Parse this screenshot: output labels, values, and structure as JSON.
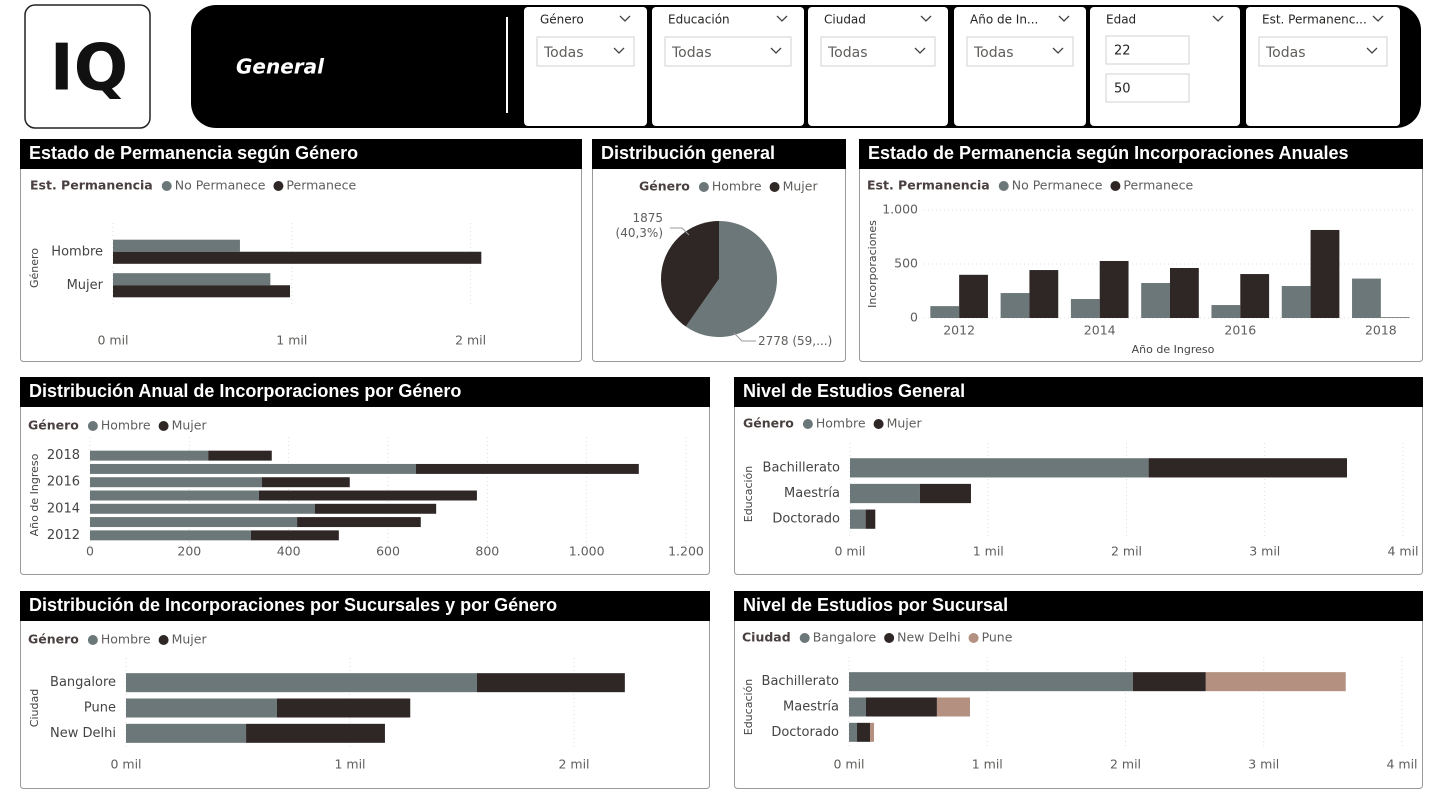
{
  "header": {
    "logo": "IQ",
    "title": "General",
    "filters": [
      {
        "label": "Género",
        "value": "Todas"
      },
      {
        "label": "Educación",
        "value": "Todas"
      },
      {
        "label": "Ciudad",
        "value": "Todas"
      },
      {
        "label": "Año de In...",
        "value": "Todas"
      },
      {
        "label": "Edad",
        "min": 22,
        "max": 50
      },
      {
        "label": "Est. Permanenc...",
        "value": "Todas"
      }
    ]
  },
  "chart_data": [
    {
      "type": "bar",
      "orientation": "horizontal",
      "stacked": false,
      "grid": true,
      "title": "Estado de Permanencia según Género",
      "legend_title": "Est. Permanencia",
      "y_label": "Género",
      "categories": [
        "Hombre",
        "Mujer"
      ],
      "series": [
        {
          "name": "No Permanece",
          "color": "#6b7778",
          "values": [
            710,
            880
          ]
        },
        {
          "name": "Permanece",
          "color": "#2f2626",
          "values": [
            2060,
            990
          ]
        }
      ],
      "xlim": [
        0,
        2500
      ],
      "xticks": [
        {
          "value": 0,
          "label": "0 mil"
        },
        {
          "value": 1000,
          "label": "1 mil"
        },
        {
          "value": 2000,
          "label": "2 mil"
        }
      ]
    },
    {
      "type": "pie",
      "title": "Distribución general",
      "legend_title": "Género",
      "categories": [
        "Hombre",
        "Mujer"
      ],
      "colors": [
        "#6b7778",
        "#2f2626"
      ],
      "values": [
        2778,
        1875
      ],
      "value_labels": [
        "2778 (59,...)",
        "1875 (40,3%)"
      ]
    },
    {
      "type": "bar",
      "orientation": "vertical",
      "stacked": false,
      "grid": true,
      "title": "Estado de Permanencia según Incorporaciones Anuales",
      "legend_title": "Est. Permanencia",
      "x_label": "Año de Ingreso",
      "y_label": "Incorporaciones",
      "categories": [
        "2012",
        null,
        "2014",
        null,
        "2016",
        null,
        "2018"
      ],
      "series": [
        {
          "name": "No Permanece",
          "color": "#6b7778",
          "values": [
            110,
            231,
            176,
            324,
            120,
            296,
            365
          ]
        },
        {
          "name": "Permanece",
          "color": "#2f2626",
          "values": [
            400,
            444,
            528,
            463,
            407,
            815,
            5
          ]
        }
      ],
      "ylim": [
        0,
        1000
      ],
      "yticks": [
        0,
        500,
        {
          "value": 1000,
          "label": "1.000"
        }
      ]
    },
    {
      "type": "bar",
      "orientation": "horizontal",
      "stacked": true,
      "grid": true,
      "title": "Distribución Anual de Incorporaciones por Género",
      "legend_title": "Género",
      "y_label": "Año de Ingreso",
      "categories": [
        "2018",
        null,
        "2016",
        null,
        "2014",
        null,
        "2012"
      ],
      "series": [
        {
          "name": "Hombre",
          "color": "#6b7778",
          "values": [
            238,
            656,
            346,
            340,
            453,
            417,
            324
          ]
        },
        {
          "name": "Mujer",
          "color": "#2f2626",
          "values": [
            128,
            449,
            177,
            439,
            244,
            249,
            177
          ]
        }
      ],
      "xlim": [
        0,
        1200
      ],
      "xticks": [
        0,
        200,
        400,
        600,
        800,
        {
          "value": 1000,
          "label": "1.000"
        },
        {
          "value": 1200,
          "label": "1.200"
        }
      ]
    },
    {
      "type": "bar",
      "orientation": "horizontal",
      "stacked": true,
      "grid": true,
      "title": "Nivel de Estudios General",
      "legend_title": "Género",
      "y_label": "Educación",
      "categories": [
        "Bachillerato",
        "Maestría",
        "Doctorado"
      ],
      "series": [
        {
          "name": "Hombre",
          "color": "#6b7778",
          "values": [
            2160,
            505,
            113
          ]
        },
        {
          "name": "Mujer",
          "color": "#2f2626",
          "values": [
            1435,
            370,
            70
          ]
        }
      ],
      "xlim": [
        0,
        4000
      ],
      "xticks": [
        {
          "value": 0,
          "label": "0 mil"
        },
        {
          "value": 1000,
          "label": "1 mil"
        },
        {
          "value": 2000,
          "label": "2 mil"
        },
        {
          "value": 3000,
          "label": "3 mil"
        },
        {
          "value": 4000,
          "label": "4 mil"
        }
      ]
    },
    {
      "type": "bar",
      "orientation": "horizontal",
      "stacked": true,
      "grid": true,
      "title": "Distribución de Incorporaciones por Sucursales y por Género",
      "legend_title": "Género",
      "y_label": "Ciudad",
      "categories": [
        "Bangalore",
        "Pune",
        "New Delhi"
      ],
      "series": [
        {
          "name": "Hombre",
          "color": "#6b7778",
          "values": [
            1567,
            674,
            536
          ]
        },
        {
          "name": "Mujer",
          "color": "#2f2626",
          "values": [
            660,
            595,
            620
          ]
        }
      ],
      "xlim": [
        0,
        2500
      ],
      "xticks": [
        {
          "value": 0,
          "label": "0 mil"
        },
        {
          "value": 1000,
          "label": "1 mil"
        },
        {
          "value": 2000,
          "label": "2 mil"
        }
      ]
    },
    {
      "type": "bar",
      "orientation": "horizontal",
      "stacked": true,
      "grid": true,
      "title": "Nivel de Estudios por Sucursal",
      "legend_title": "Ciudad",
      "y_label": "Educación",
      "categories": [
        "Bachillerato",
        "Maestría",
        "Doctorado"
      ],
      "series": [
        {
          "name": "Bangalore",
          "color": "#6b7778",
          "values": [
            2053,
            123,
            58
          ]
        },
        {
          "name": "New Delhi",
          "color": "#2f2626",
          "values": [
            528,
            513,
            94
          ]
        },
        {
          "name": "Pune",
          "color": "#b39080",
          "values": [
            1012,
            239,
            29
          ]
        }
      ],
      "xlim": [
        0,
        4000
      ],
      "xticks": [
        {
          "value": 0,
          "label": "0 mil"
        },
        {
          "value": 1000,
          "label": "1 mil"
        },
        {
          "value": 2000,
          "label": "2 mil"
        },
        {
          "value": 3000,
          "label": "3 mil"
        },
        {
          "value": 4000,
          "label": "4 mil"
        }
      ]
    }
  ]
}
